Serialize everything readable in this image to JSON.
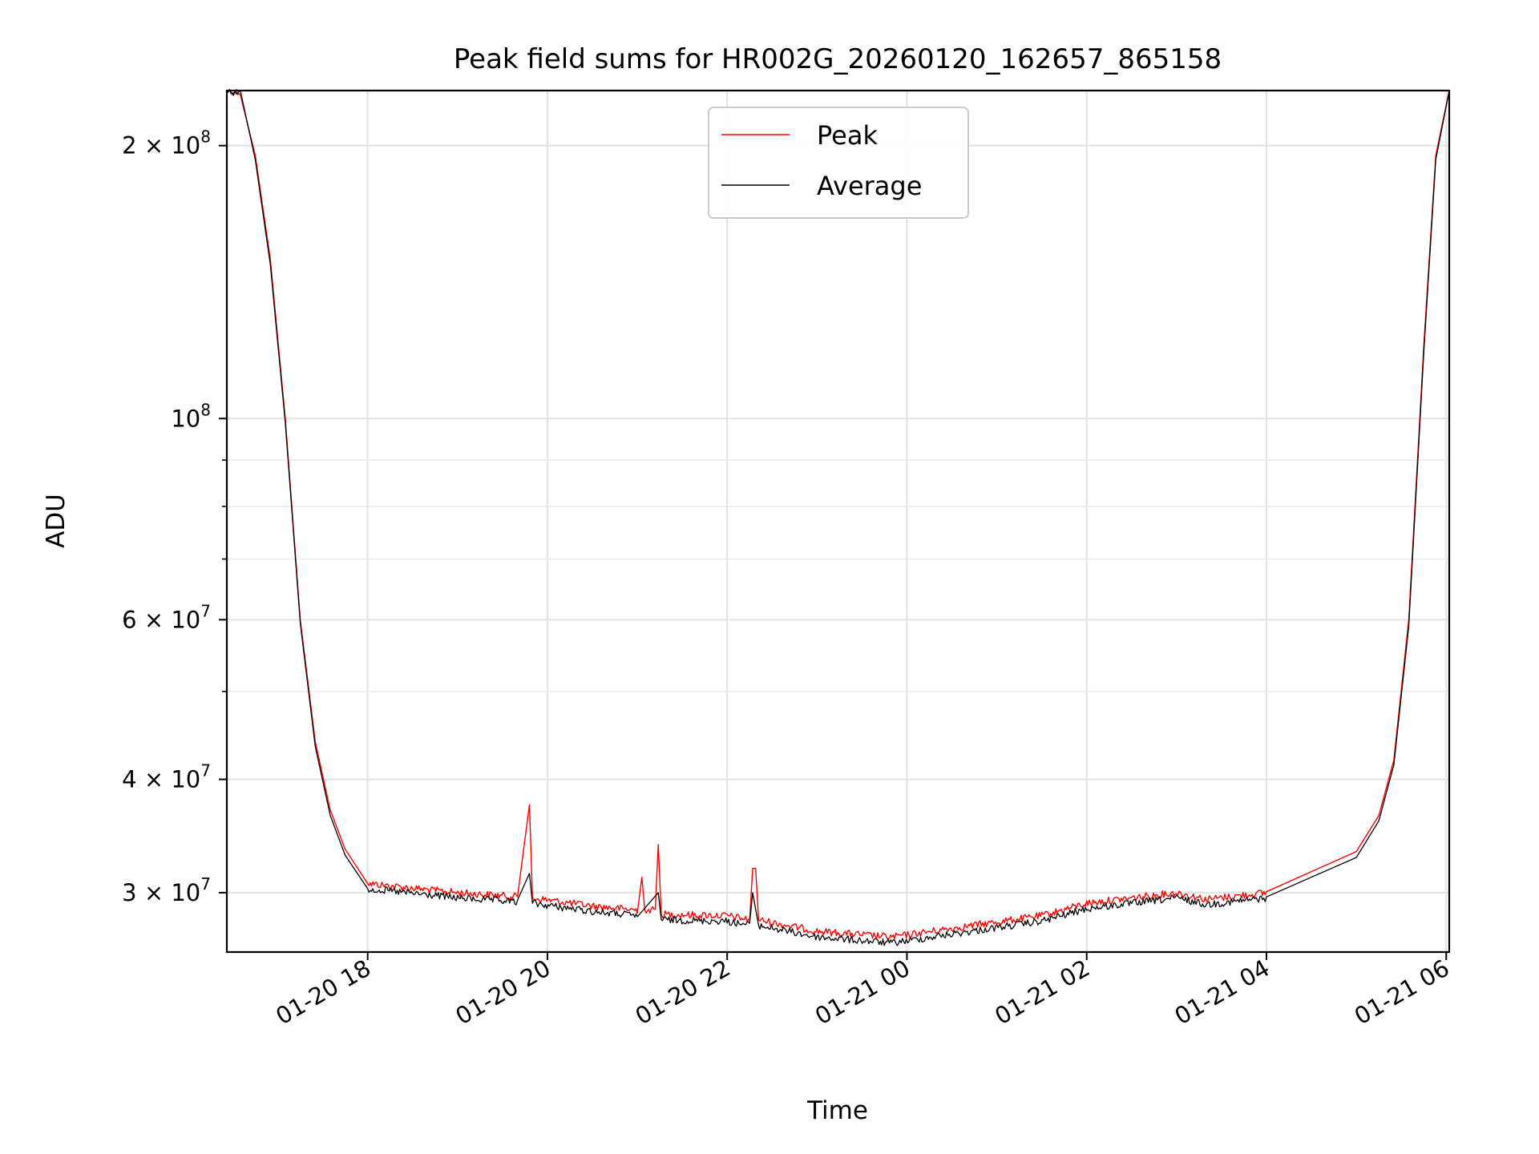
{
  "chart_data": {
    "type": "line",
    "title": "Peak field sums for HR002G_20260120_162657_865158",
    "xlabel": "Time",
    "ylabel": "ADU",
    "yscale": "log",
    "ylim": [
      25800000,
      230000000
    ],
    "xlim": [
      "2026-01-20 16:26",
      "2026-01-21 06:02"
    ],
    "grid": true,
    "legend_position": "top-center",
    "x_ticks": [
      {
        "value": "2026-01-20 18:00",
        "label": "01-20 18"
      },
      {
        "value": "2026-01-20 20:00",
        "label": "01-20 20"
      },
      {
        "value": "2026-01-20 22:00",
        "label": "01-20 22"
      },
      {
        "value": "2026-01-21 00:00",
        "label": "01-21 00"
      },
      {
        "value": "2026-01-21 02:00",
        "label": "01-21 02"
      },
      {
        "value": "2026-01-21 04:00",
        "label": "01-21 04"
      },
      {
        "value": "2026-01-21 06:00",
        "label": "01-21 06"
      }
    ],
    "y_ticks": [
      {
        "value": 30000000,
        "mant": "3",
        "exp": "7"
      },
      {
        "value": 40000000,
        "mant": "4",
        "exp": "7"
      },
      {
        "value": 60000000,
        "mant": "6",
        "exp": "7"
      },
      {
        "value": 100000000,
        "mant": "",
        "exp": "8"
      },
      {
        "value": 200000000,
        "mant": "2",
        "exp": "8"
      }
    ],
    "y_minor_ticks": [
      50000000,
      70000000,
      80000000,
      90000000
    ],
    "series": [
      {
        "name": "Peak",
        "color": "#ff0000",
        "points": [
          [
            "2026-01-20 16:26",
            230000000
          ],
          [
            "2026-01-20 16:35",
            229000000
          ],
          [
            "2026-01-20 16:45",
            195000000
          ],
          [
            "2026-01-20 16:55",
            150000000
          ],
          [
            "2026-01-20 17:05",
            100000000
          ],
          [
            "2026-01-20 17:15",
            60000000
          ],
          [
            "2026-01-20 17:25",
            44000000
          ],
          [
            "2026-01-20 17:35",
            37000000
          ],
          [
            "2026-01-20 17:45",
            33500000
          ],
          [
            "2026-01-20 18:00",
            30700000
          ],
          [
            "2026-01-20 19:00",
            30000000
          ],
          [
            "2026-01-20 19:40",
            29700000
          ],
          [
            "2026-01-20 19:48",
            37500000
          ],
          [
            "2026-01-20 19:50",
            29600000
          ],
          [
            "2026-01-20 20:30",
            29000000
          ],
          [
            "2026-01-20 21:00",
            28700000
          ],
          [
            "2026-01-20 21:03",
            31200000
          ],
          [
            "2026-01-20 21:05",
            28700000
          ],
          [
            "2026-01-20 21:12",
            28700000
          ],
          [
            "2026-01-20 21:14",
            33900000
          ],
          [
            "2026-01-20 21:16",
            28400000
          ],
          [
            "2026-01-20 22:00",
            28300000
          ],
          [
            "2026-01-20 22:15",
            28000000
          ],
          [
            "2026-01-20 22:17",
            31900000
          ],
          [
            "2026-01-20 22:19",
            31900000
          ],
          [
            "2026-01-20 22:21",
            28000000
          ],
          [
            "2026-01-20 23:00",
            27200000
          ],
          [
            "2026-01-20 23:50",
            26800000
          ],
          [
            "2026-01-21 00:30",
            27400000
          ],
          [
            "2026-01-21 01:30",
            28300000
          ],
          [
            "2026-01-21 02:00",
            29200000
          ],
          [
            "2026-01-21 03:00",
            30000000
          ],
          [
            "2026-01-21 03:20",
            29500000
          ],
          [
            "2026-01-21 04:00",
            30000000
          ],
          [
            "2026-01-21 05:00",
            33300000
          ],
          [
            "2026-01-21 05:15",
            36500000
          ],
          [
            "2026-01-21 05:25",
            42000000
          ],
          [
            "2026-01-21 05:35",
            60000000
          ],
          [
            "2026-01-21 05:45",
            120000000
          ],
          [
            "2026-01-21 05:53",
            195000000
          ],
          [
            "2026-01-21 06:02",
            230000000
          ]
        ]
      },
      {
        "name": "Average",
        "color": "#000000",
        "points": [
          [
            "2026-01-20 16:26",
            230000000
          ],
          [
            "2026-01-20 16:35",
            228000000
          ],
          [
            "2026-01-20 16:45",
            193000000
          ],
          [
            "2026-01-20 16:55",
            148000000
          ],
          [
            "2026-01-20 17:05",
            99000000
          ],
          [
            "2026-01-20 17:15",
            59500000
          ],
          [
            "2026-01-20 17:25",
            43500000
          ],
          [
            "2026-01-20 17:35",
            36500000
          ],
          [
            "2026-01-20 17:45",
            33000000
          ],
          [
            "2026-01-20 18:00",
            30300000
          ],
          [
            "2026-01-20 19:00",
            29600000
          ],
          [
            "2026-01-20 19:40",
            29300000
          ],
          [
            "2026-01-20 19:48",
            31500000
          ],
          [
            "2026-01-20 19:50",
            29200000
          ],
          [
            "2026-01-20 20:30",
            28600000
          ],
          [
            "2026-01-20 21:00",
            28300000
          ],
          [
            "2026-01-20 21:14",
            30000000
          ],
          [
            "2026-01-20 21:16",
            28000000
          ],
          [
            "2026-01-20 22:00",
            27900000
          ],
          [
            "2026-01-20 22:15",
            27600000
          ],
          [
            "2026-01-20 22:17",
            30000000
          ],
          [
            "2026-01-20 22:21",
            27600000
          ],
          [
            "2026-01-20 23:00",
            26800000
          ],
          [
            "2026-01-20 23:50",
            26400000
          ],
          [
            "2026-01-21 00:30",
            27000000
          ],
          [
            "2026-01-21 01:30",
            27900000
          ],
          [
            "2026-01-21 02:00",
            28800000
          ],
          [
            "2026-01-21 03:00",
            29600000
          ],
          [
            "2026-01-21 03:20",
            29100000
          ],
          [
            "2026-01-21 04:00",
            29600000
          ],
          [
            "2026-01-21 05:00",
            32800000
          ],
          [
            "2026-01-21 05:15",
            36000000
          ],
          [
            "2026-01-21 05:25",
            41500000
          ],
          [
            "2026-01-21 05:35",
            59000000
          ],
          [
            "2026-01-21 05:45",
            118000000
          ],
          [
            "2026-01-21 05:53",
            193000000
          ],
          [
            "2026-01-21 06:02",
            230000000
          ]
        ]
      }
    ]
  }
}
